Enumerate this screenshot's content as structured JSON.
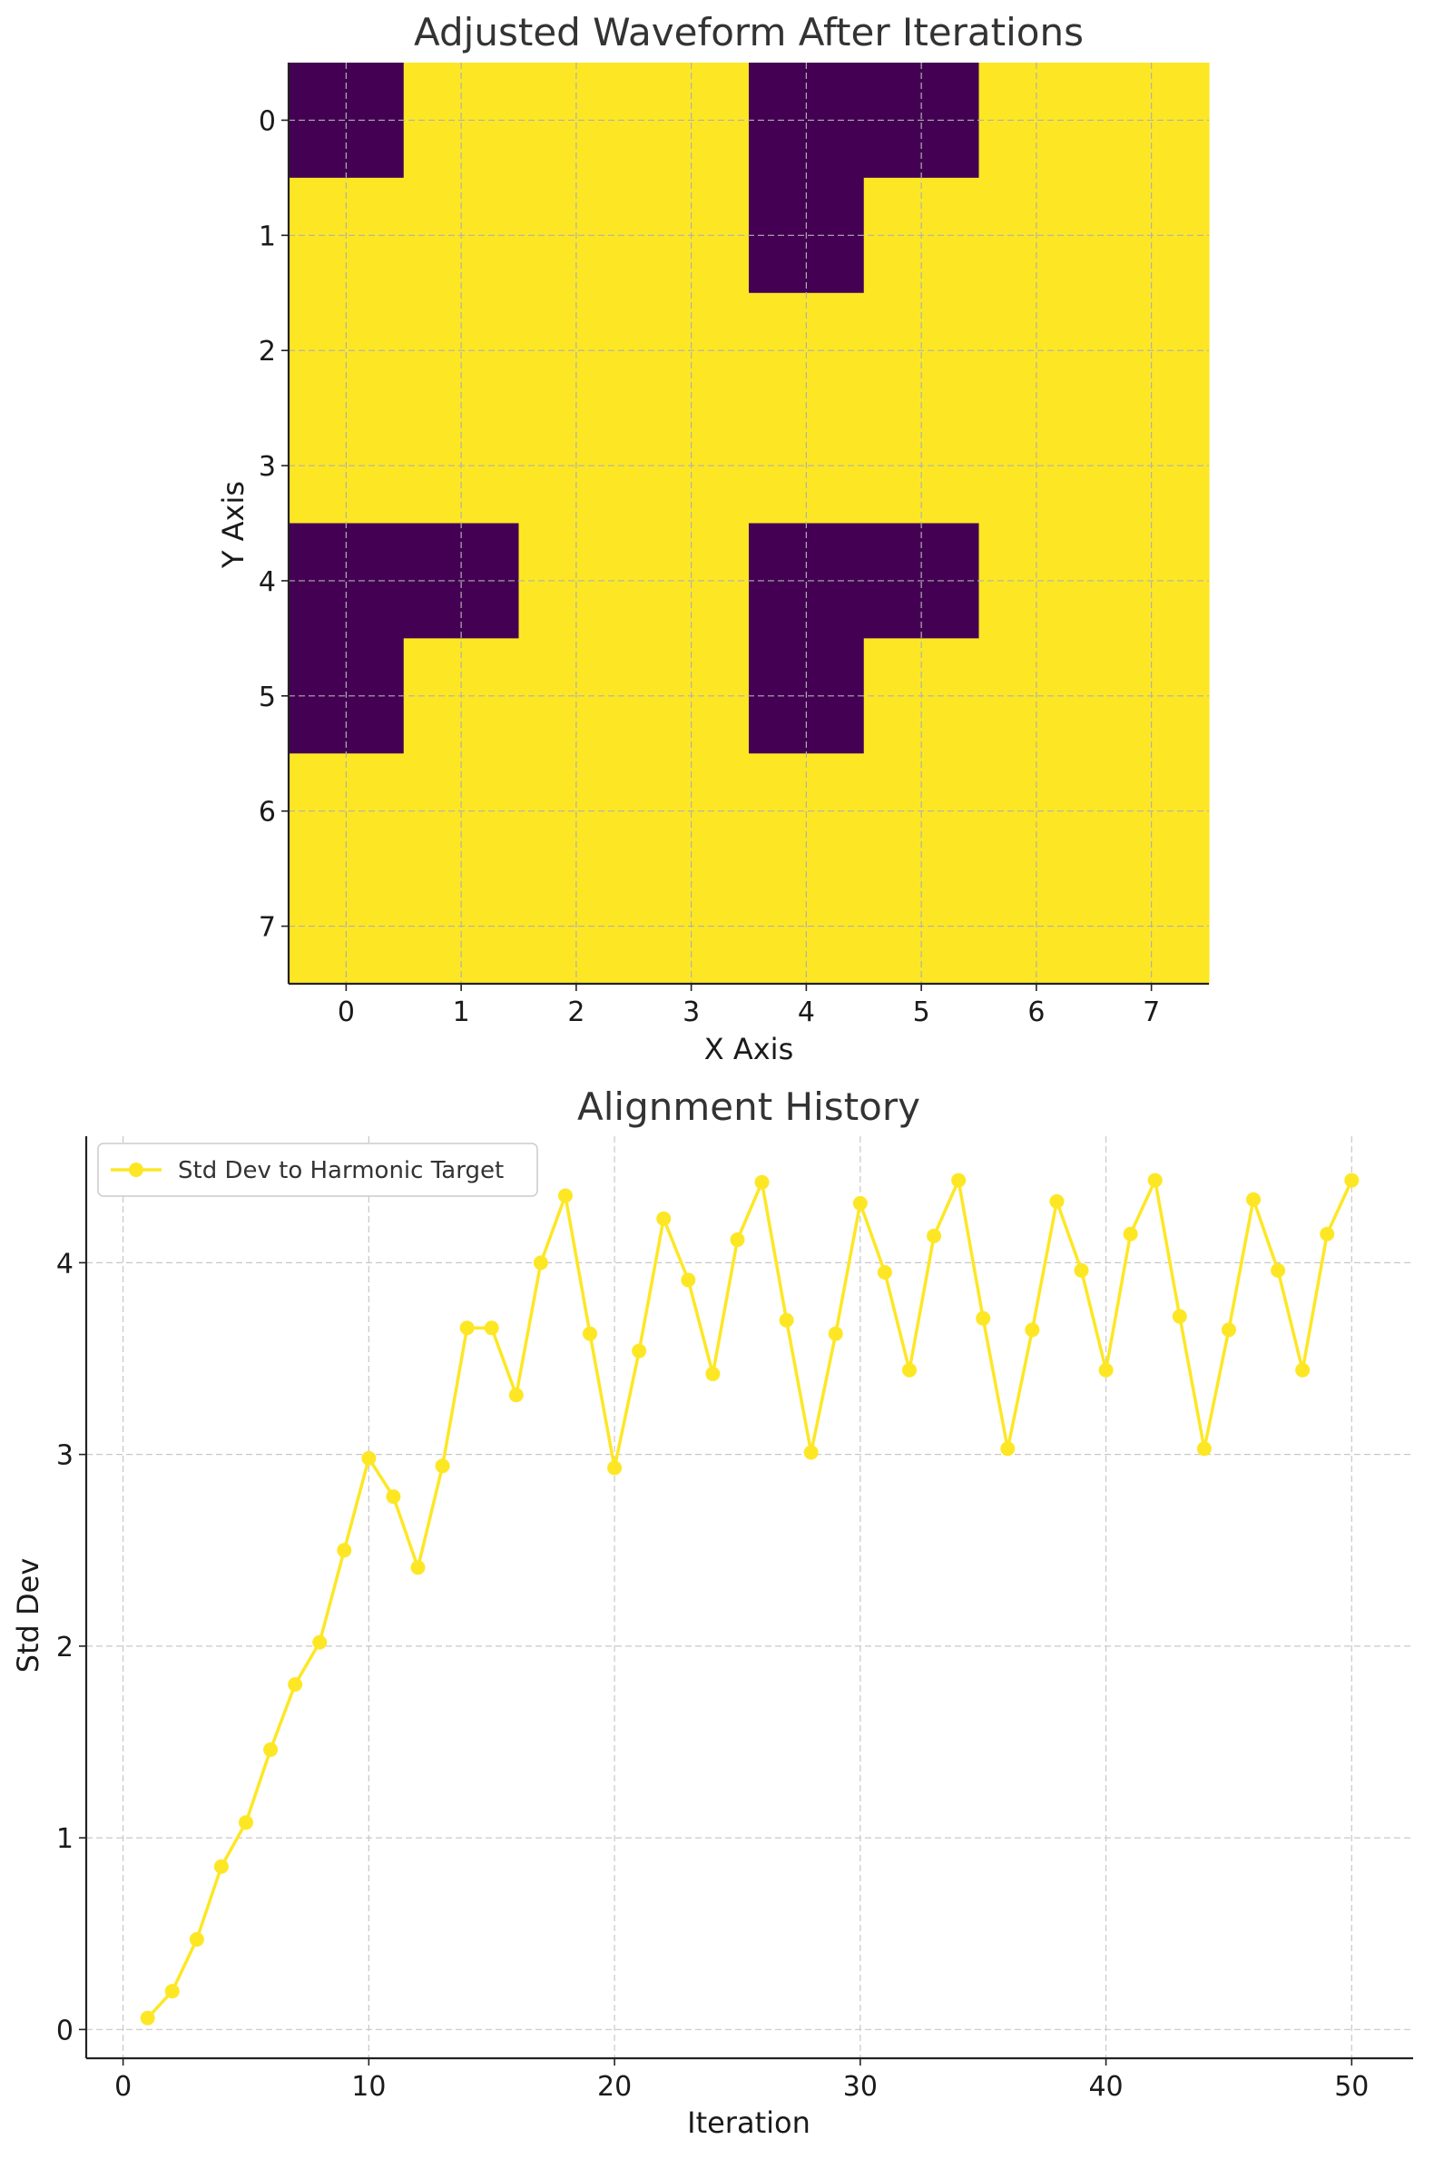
{
  "chart_data": [
    {
      "type": "heatmap",
      "title": "Adjusted Waveform After Iterations",
      "xlabel": "X Axis",
      "ylabel": "Y Axis",
      "x_ticks": [
        "0",
        "1",
        "2",
        "3",
        "4",
        "5",
        "6",
        "7"
      ],
      "y_ticks": [
        "0",
        "1",
        "2",
        "3",
        "4",
        "5",
        "6",
        "7"
      ],
      "grid": true,
      "colormap": {
        "low": "#440154",
        "high": "#fde725"
      },
      "values": [
        [
          0,
          1,
          1,
          1,
          0,
          0,
          1,
          1
        ],
        [
          1,
          1,
          1,
          1,
          0,
          1,
          1,
          1
        ],
        [
          1,
          1,
          1,
          1,
          1,
          1,
          1,
          1
        ],
        [
          1,
          1,
          1,
          1,
          1,
          1,
          1,
          1
        ],
        [
          0,
          0,
          1,
          1,
          0,
          0,
          1,
          1
        ],
        [
          0,
          1,
          1,
          1,
          0,
          1,
          1,
          1
        ],
        [
          1,
          1,
          1,
          1,
          1,
          1,
          1,
          1
        ],
        [
          1,
          1,
          1,
          1,
          1,
          1,
          1,
          1
        ]
      ]
    },
    {
      "type": "line",
      "title": "Alignment History",
      "xlabel": "Iteration",
      "ylabel": "Std Dev",
      "xlim": [
        -1.5,
        52.5
      ],
      "ylim": [
        -0.15,
        4.66
      ],
      "x_ticks": [
        0,
        10,
        20,
        30,
        40,
        50
      ],
      "y_ticks": [
        0,
        1,
        2,
        3,
        4
      ],
      "grid": true,
      "legend": "top-left",
      "series": [
        {
          "name": "Std Dev to Harmonic Target",
          "color": "#fde725",
          "marker": "circle",
          "x": [
            1,
            2,
            3,
            4,
            5,
            6,
            7,
            8,
            9,
            10,
            11,
            12,
            13,
            14,
            15,
            16,
            17,
            18,
            19,
            20,
            21,
            22,
            23,
            24,
            25,
            26,
            27,
            28,
            29,
            30,
            31,
            32,
            33,
            34,
            35,
            36,
            37,
            38,
            39,
            40,
            41,
            42,
            43,
            44,
            45,
            46,
            47,
            48,
            49,
            50
          ],
          "y": [
            0.06,
            0.2,
            0.47,
            0.85,
            1.08,
            1.46,
            1.8,
            2.02,
            2.5,
            2.98,
            2.78,
            2.41,
            2.94,
            3.66,
            3.66,
            3.31,
            4.0,
            4.35,
            3.63,
            2.93,
            3.54,
            4.23,
            3.91,
            3.42,
            4.12,
            4.42,
            3.7,
            3.01,
            3.63,
            4.31,
            3.95,
            3.44,
            4.14,
            4.43,
            3.71,
            3.03,
            3.65,
            4.32,
            3.96,
            3.44,
            4.15,
            4.43,
            3.72,
            3.03,
            3.65,
            4.33,
            3.96,
            3.44,
            4.15,
            4.43
          ]
        }
      ]
    }
  ]
}
